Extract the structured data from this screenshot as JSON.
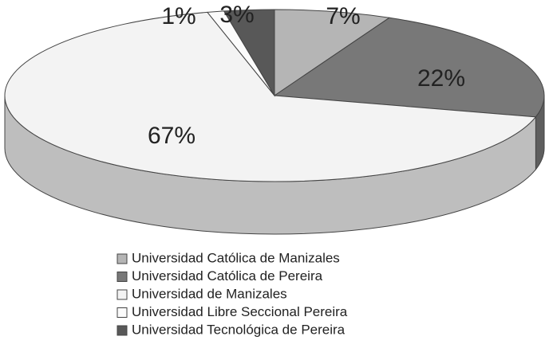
{
  "chart_data": {
    "type": "pie",
    "categories": [
      "Universidad Católica de Manizales",
      "Universidad Católica de Pereira",
      "Universidad de Manizales",
      "Universidad Libre Seccional Pereira",
      "Universidad Tecnológica de Pereira"
    ],
    "values": [
      7,
      22,
      67,
      1,
      3
    ],
    "value_labels": [
      "7%",
      "22%",
      "67%",
      "1%",
      "3%"
    ],
    "colors": [
      "#b5b5b5",
      "#787878",
      "#f3f3f3",
      "#fbfbfb",
      "#585858"
    ]
  }
}
